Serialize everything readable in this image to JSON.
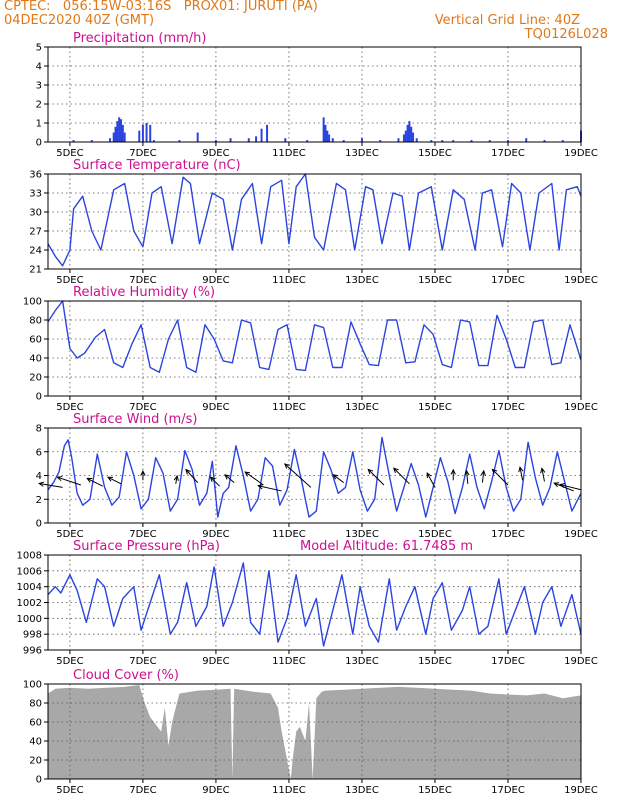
{
  "header": {
    "line1_left": "CPTEC:   056:15W-03:16S   PROX01: JURUTI (PA)",
    "line2_left": "04DEC2020 40Z (GMT)",
    "line2_right": "Vertical Grid Line: 40Z",
    "line3_right": "TQ0126L028"
  },
  "colors": {
    "header": "#e07818",
    "panel_title": "#cc1090",
    "series": "#2b44e0",
    "cloud": "#a8a8a8",
    "arrow": "#000000"
  },
  "chart_data": [
    {
      "id": "precip",
      "type": "bar",
      "title": "Precipitation (mm/h)",
      "ylim": [
        0,
        5
      ],
      "yticks": [
        0,
        1,
        2,
        3,
        4,
        5
      ],
      "grid": true,
      "x_ticks": [
        "5DEC",
        "7DEC",
        "9DEC",
        "11DEC",
        "13DEC",
        "15DEC",
        "17DEC",
        "19DEC"
      ],
      "x_range_days": [
        4.4,
        19.0
      ],
      "x": [
        5.1,
        5.6,
        6.1,
        6.2,
        6.25,
        6.3,
        6.35,
        6.4,
        6.45,
        6.5,
        6.9,
        7.0,
        7.1,
        7.2,
        7.3,
        8.0,
        8.5,
        9.0,
        9.4,
        9.9,
        10.1,
        10.25,
        10.4,
        10.9,
        11.5,
        11.95,
        12.0,
        12.05,
        12.1,
        12.2,
        12.5,
        13.0,
        13.5,
        14.0,
        14.15,
        14.2,
        14.25,
        14.3,
        14.35,
        14.4,
        14.5,
        14.9,
        15.2,
        15.5,
        16.0,
        16.5,
        17.0,
        17.5,
        18.0,
        18.5,
        19.0
      ],
      "values": [
        0.1,
        0.1,
        0.2,
        0.5,
        0.8,
        1.1,
        1.3,
        1.2,
        0.9,
        0.5,
        0.6,
        0.9,
        1.0,
        0.9,
        0.1,
        0.1,
        0.5,
        0.1,
        0.2,
        0.2,
        0.3,
        0.7,
        0.9,
        0.2,
        0.1,
        1.3,
        0.9,
        0.6,
        0.4,
        0.2,
        0.1,
        0.2,
        0.1,
        0.2,
        0.4,
        0.6,
        0.9,
        1.1,
        0.8,
        0.5,
        0.2,
        0.1,
        0.1,
        0.1,
        0.1,
        0.1,
        0.1,
        0.2,
        0.1,
        0.1,
        0.6
      ]
    },
    {
      "id": "temp",
      "type": "line",
      "title": "Surface Temperature (nC)",
      "ylim": [
        21,
        36
      ],
      "yticks": [
        21,
        24,
        27,
        30,
        33,
        36
      ],
      "grid": true,
      "x_ticks": [
        "5DEC",
        "7DEC",
        "9DEC",
        "11DEC",
        "13DEC",
        "15DEC",
        "17DEC",
        "19DEC"
      ],
      "x_range_days": [
        4.4,
        19.0
      ],
      "x": [
        4.4,
        4.6,
        4.8,
        5.0,
        5.1,
        5.35,
        5.6,
        5.85,
        6.2,
        6.5,
        6.75,
        7.0,
        7.25,
        7.5,
        7.8,
        8.1,
        8.3,
        8.55,
        8.9,
        9.2,
        9.45,
        9.7,
        10.0,
        10.25,
        10.5,
        10.8,
        11.0,
        11.2,
        11.45,
        11.7,
        11.95,
        12.3,
        12.55,
        12.8,
        13.1,
        13.3,
        13.55,
        13.85,
        14.1,
        14.3,
        14.55,
        14.9,
        15.2,
        15.5,
        15.8,
        16.1,
        16.3,
        16.55,
        16.85,
        17.1,
        17.35,
        17.6,
        17.85,
        18.2,
        18.4,
        18.6,
        18.9,
        19.0
      ],
      "values": [
        25.0,
        23.0,
        21.5,
        24.0,
        30.5,
        32.5,
        27.0,
        24.0,
        33.5,
        34.5,
        27.0,
        24.5,
        33.0,
        34.0,
        25.0,
        35.5,
        34.5,
        25.0,
        33.0,
        32.0,
        24.0,
        32.0,
        34.5,
        25.0,
        34.0,
        35.0,
        25.0,
        34.0,
        36.0,
        26.0,
        24.0,
        34.5,
        33.5,
        24.0,
        34.0,
        33.5,
        25.0,
        33.0,
        32.5,
        24.0,
        33.0,
        34.0,
        24.0,
        33.5,
        32.0,
        24.0,
        33.0,
        33.5,
        24.5,
        34.5,
        33.0,
        24.0,
        33.0,
        34.5,
        24.0,
        33.5,
        34.0,
        32.5
      ]
    },
    {
      "id": "rh",
      "type": "line",
      "title": "Relative Humidity (%)",
      "ylim": [
        0,
        100
      ],
      "yticks": [
        0,
        20,
        40,
        60,
        80,
        100
      ],
      "grid": true,
      "x_ticks": [
        "5DEC",
        "7DEC",
        "9DEC",
        "11DEC",
        "13DEC",
        "15DEC",
        "17DEC",
        "19DEC"
      ],
      "x_range_days": [
        4.4,
        19.0
      ],
      "x": [
        4.4,
        4.6,
        4.8,
        5.0,
        5.2,
        5.4,
        5.7,
        5.95,
        6.2,
        6.45,
        6.7,
        6.95,
        7.2,
        7.45,
        7.7,
        7.95,
        8.2,
        8.45,
        8.7,
        8.95,
        9.2,
        9.45,
        9.7,
        9.95,
        10.2,
        10.45,
        10.7,
        10.95,
        11.2,
        11.45,
        11.7,
        11.95,
        12.2,
        12.45,
        12.7,
        12.95,
        13.2,
        13.45,
        13.7,
        13.95,
        14.2,
        14.45,
        14.7,
        14.95,
        15.2,
        15.45,
        15.7,
        15.95,
        16.2,
        16.45,
        16.7,
        16.95,
        17.2,
        17.45,
        17.7,
        17.95,
        18.2,
        18.45,
        18.7,
        19.0
      ],
      "values": [
        78,
        90,
        100,
        50,
        40,
        45,
        62,
        70,
        35,
        30,
        55,
        75,
        30,
        25,
        60,
        80,
        30,
        25,
        75,
        60,
        37,
        35,
        80,
        77,
        30,
        28,
        70,
        75,
        28,
        27,
        75,
        72,
        30,
        30,
        78,
        55,
        33,
        32,
        80,
        80,
        35,
        36,
        75,
        65,
        33,
        30,
        80,
        78,
        32,
        32,
        85,
        60,
        30,
        30,
        78,
        80,
        33,
        35,
        75,
        38
      ]
    },
    {
      "id": "wind",
      "type": "line",
      "title": "Surface Wind (m/s)",
      "ylim": [
        0,
        8
      ],
      "yticks": [
        0,
        2,
        4,
        6,
        8
      ],
      "grid": true,
      "x_ticks": [
        "5DEC",
        "7DEC",
        "9DEC",
        "11DEC",
        "13DEC",
        "15DEC",
        "17DEC",
        "19DEC"
      ],
      "x_range_days": [
        4.4,
        19.0
      ],
      "x": [
        4.4,
        4.55,
        4.7,
        4.85,
        4.95,
        5.05,
        5.2,
        5.35,
        5.55,
        5.75,
        5.95,
        6.15,
        6.35,
        6.55,
        6.75,
        6.95,
        7.15,
        7.35,
        7.55,
        7.75,
        7.95,
        8.15,
        8.35,
        8.55,
        8.75,
        8.9,
        9.05,
        9.2,
        9.35,
        9.55,
        9.75,
        9.95,
        10.15,
        10.35,
        10.55,
        10.75,
        10.95,
        11.15,
        11.35,
        11.55,
        11.75,
        11.95,
        12.15,
        12.35,
        12.55,
        12.75,
        12.95,
        13.15,
        13.35,
        13.55,
        13.75,
        13.95,
        14.15,
        14.35,
        14.55,
        14.75,
        14.95,
        15.15,
        15.35,
        15.55,
        15.75,
        15.95,
        16.15,
        16.35,
        16.55,
        16.75,
        16.95,
        17.15,
        17.35,
        17.55,
        17.75,
        17.95,
        18.15,
        18.35,
        18.55,
        18.75,
        19.0
      ],
      "values": [
        2.8,
        3.4,
        4.3,
        6.5,
        7.0,
        5.5,
        2.5,
        1.5,
        2.0,
        5.8,
        3.0,
        1.5,
        2.2,
        6.0,
        4.0,
        1.2,
        2.0,
        5.5,
        4.2,
        1.0,
        2.0,
        6.1,
        4.5,
        1.5,
        2.5,
        5.2,
        0.5,
        2.5,
        3.0,
        6.5,
        4.0,
        1.0,
        2.0,
        5.5,
        4.8,
        1.5,
        2.8,
        6.2,
        3.5,
        0.5,
        1.0,
        6.0,
        4.5,
        2.5,
        3.0,
        6.0,
        2.8,
        1.0,
        2.0,
        7.2,
        4.0,
        1.0,
        3.0,
        5.0,
        3.2,
        0.5,
        3.0,
        5.5,
        3.5,
        0.8,
        3.0,
        5.8,
        3.0,
        1.2,
        3.5,
        6.1,
        3.0,
        1.0,
        2.0,
        6.8,
        3.8,
        1.5,
        3.0,
        6.0,
        3.5,
        1.0,
        2.5
      ],
      "arrows": [
        {
          "x": 4.8,
          "y": 3.0,
          "u": -0.9,
          "v": 0.15
        },
        {
          "x": 5.3,
          "y": 3.2,
          "u": -0.9,
          "v": 0.3
        },
        {
          "x": 5.9,
          "y": 3.1,
          "u": -0.6,
          "v": 0.3
        },
        {
          "x": 6.4,
          "y": 3.3,
          "u": -0.5,
          "v": 0.25
        },
        {
          "x": 7.0,
          "y": 3.6,
          "u": 0.0,
          "v": 0.35
        },
        {
          "x": 7.9,
          "y": 3.3,
          "u": 0.05,
          "v": 0.3
        },
        {
          "x": 8.5,
          "y": 3.4,
          "u": -0.45,
          "v": 0.5
        },
        {
          "x": 9.1,
          "y": 3.1,
          "u": -0.35,
          "v": 0.35
        },
        {
          "x": 9.5,
          "y": 3.4,
          "u": -0.35,
          "v": 0.3
        },
        {
          "x": 10.3,
          "y": 3.2,
          "u": -0.7,
          "v": 0.5
        },
        {
          "x": 10.8,
          "y": 2.7,
          "u": -0.9,
          "v": 0.2
        },
        {
          "x": 11.6,
          "y": 3.0,
          "u": -1.0,
          "v": 0.9
        },
        {
          "x": 12.5,
          "y": 3.4,
          "u": -0.4,
          "v": 0.3
        },
        {
          "x": 13.6,
          "y": 3.2,
          "u": -0.6,
          "v": 0.6
        },
        {
          "x": 14.3,
          "y": 3.3,
          "u": -0.6,
          "v": 0.6
        },
        {
          "x": 15.0,
          "y": 3.0,
          "u": -0.3,
          "v": 0.55
        },
        {
          "x": 15.5,
          "y": 3.6,
          "u": 0.0,
          "v": 0.4
        },
        {
          "x": 15.9,
          "y": 3.3,
          "u": -0.05,
          "v": 0.5
        },
        {
          "x": 16.3,
          "y": 3.4,
          "u": 0.05,
          "v": 0.45
        },
        {
          "x": 17.0,
          "y": 3.2,
          "u": -0.6,
          "v": 0.6
        },
        {
          "x": 17.4,
          "y": 3.6,
          "u": -0.1,
          "v": 0.5
        },
        {
          "x": 18.0,
          "y": 3.5,
          "u": -0.1,
          "v": 0.5
        },
        {
          "x": 18.8,
          "y": 2.7,
          "u": -0.75,
          "v": 0.3
        },
        {
          "x": 19.0,
          "y": 2.8,
          "u": -0.8,
          "v": 0.2
        }
      ]
    },
    {
      "id": "pressure",
      "type": "line",
      "title": "Surface Pressure (hPa)",
      "annotation": "Model Altitude: 61.7485 m",
      "ylim": [
        996,
        1008
      ],
      "yticks": [
        996,
        998,
        1000,
        1002,
        1004,
        1006,
        1008
      ],
      "grid": true,
      "x_ticks": [
        "5DEC",
        "7DEC",
        "9DEC",
        "11DEC",
        "13DEC",
        "15DEC",
        "17DEC",
        "19DEC"
      ],
      "x_range_days": [
        4.4,
        19.0
      ],
      "x": [
        4.4,
        4.6,
        4.75,
        5.0,
        5.2,
        5.45,
        5.75,
        5.95,
        6.2,
        6.45,
        6.75,
        6.95,
        7.2,
        7.45,
        7.75,
        7.95,
        8.2,
        8.45,
        8.75,
        8.95,
        9.2,
        9.45,
        9.75,
        9.95,
        10.2,
        10.45,
        10.7,
        10.95,
        11.2,
        11.45,
        11.75,
        11.95,
        12.2,
        12.45,
        12.75,
        12.95,
        13.2,
        13.45,
        13.75,
        13.95,
        14.2,
        14.45,
        14.75,
        14.95,
        15.2,
        15.45,
        15.75,
        15.95,
        16.2,
        16.45,
        16.75,
        16.95,
        17.2,
        17.45,
        17.75,
        17.95,
        18.2,
        18.45,
        18.75,
        19.0
      ],
      "values": [
        1003,
        1004,
        1003.2,
        1005.5,
        1003.5,
        999.5,
        1005.0,
        1004.0,
        999.0,
        1002.5,
        1004.0,
        998.5,
        1002.0,
        1005.5,
        998.0,
        999.5,
        1004.5,
        999.0,
        1001.5,
        1006.5,
        999.0,
        1002.0,
        1007.0,
        999.5,
        998.0,
        1006.0,
        997.0,
        1000.0,
        1005.5,
        999.0,
        1002.5,
        996.5,
        1001.0,
        1005.5,
        998.0,
        1004.0,
        999.0,
        997.0,
        1005.0,
        998.5,
        1001.5,
        1004.0,
        998.0,
        1002.5,
        1004.5,
        998.5,
        1001.0,
        1004.0,
        998.0,
        999.0,
        1005.0,
        998.0,
        1001.0,
        1004.0,
        998.0,
        1002.0,
        1004.0,
        999.0,
        1003.0,
        998.0
      ]
    },
    {
      "id": "cloud",
      "type": "area",
      "title": "Cloud Cover (%)",
      "ylim": [
        0,
        100
      ],
      "yticks": [
        0,
        20,
        40,
        60,
        80,
        100
      ],
      "grid": true,
      "x_ticks": [
        "5DEC",
        "7DEC",
        "9DEC",
        "11DEC",
        "13DEC",
        "15DEC",
        "17DEC",
        "19DEC"
      ],
      "x_range_days": [
        4.4,
        19.0
      ],
      "x": [
        4.4,
        4.6,
        5.0,
        5.5,
        6.0,
        6.5,
        6.9,
        7.05,
        7.2,
        7.4,
        7.5,
        7.6,
        7.7,
        7.8,
        8.0,
        8.5,
        9.0,
        9.4,
        9.45,
        9.5,
        10.0,
        10.5,
        10.7,
        10.8,
        10.9,
        11.0,
        11.05,
        11.1,
        11.2,
        11.3,
        11.45,
        11.55,
        11.65,
        11.75,
        11.9,
        12.0,
        12.5,
        13.0,
        13.5,
        14.0,
        14.5,
        15.0,
        15.5,
        16.0,
        16.5,
        17.0,
        17.5,
        18.0,
        18.5,
        19.0
      ],
      "values": [
        90,
        95,
        96,
        95,
        96,
        97,
        99,
        80,
        65,
        55,
        50,
        75,
        35,
        60,
        90,
        93,
        94,
        95,
        0,
        95,
        92,
        90,
        75,
        50,
        30,
        10,
        0,
        20,
        50,
        55,
        40,
        80,
        0,
        85,
        92,
        93,
        94,
        95,
        96,
        97,
        96,
        95,
        94,
        93,
        90,
        89,
        88,
        90,
        85,
        88
      ]
    }
  ]
}
